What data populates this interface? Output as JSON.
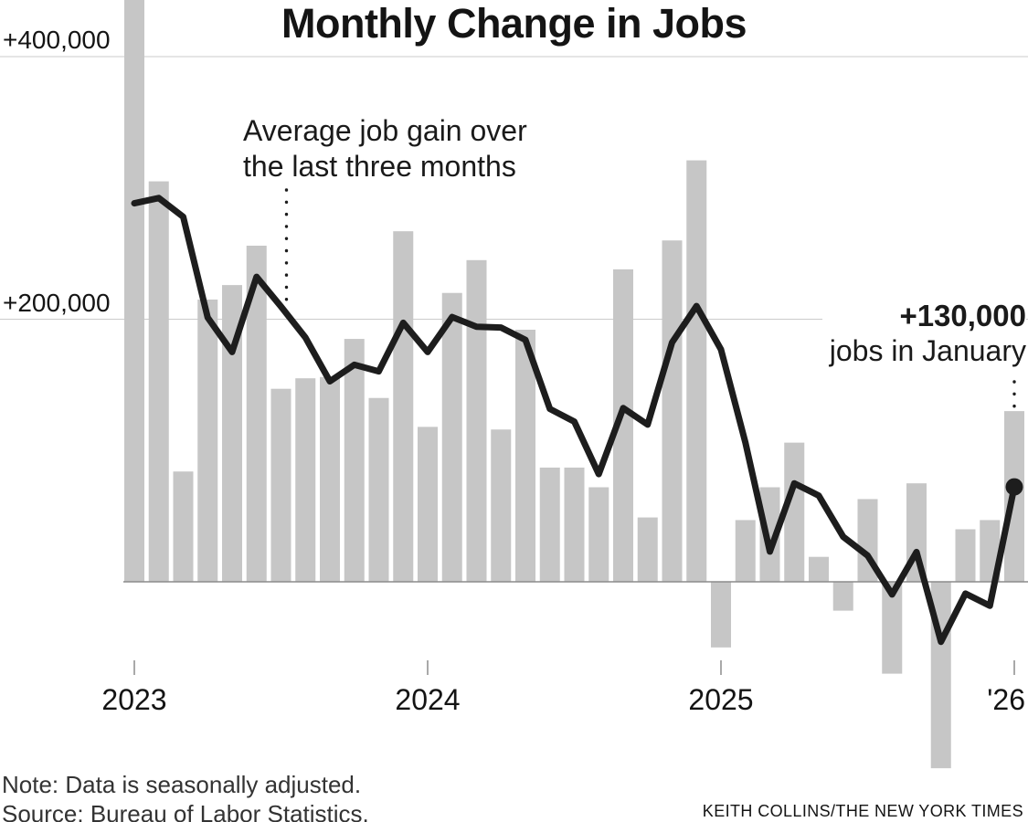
{
  "title": "Monthly Change in Jobs",
  "annotations": {
    "avg": {
      "line1": "Average job gain over",
      "line2": "the last three months"
    },
    "latest": {
      "value_label": "+130,000",
      "detail": "jobs in January"
    }
  },
  "notes": {
    "note": "Note: Data is seasonally adjusted.",
    "source": "Source: Bureau of Labor Statistics.",
    "credit": "KEITH COLLINS/THE NEW YORK TIMES"
  },
  "colors": {
    "bar": "#c6c6c6",
    "line": "#1d1d1d",
    "grid": "#cbcbcb",
    "axis": "#8c8c8c",
    "text": "#141414",
    "note_text": "#333333",
    "background": "#ffffff"
  },
  "chart_data": {
    "type": "bar",
    "title": "Monthly Change in Jobs",
    "unit": "jobs",
    "grid": "horizontal",
    "legend_position": "none",
    "baseline": 0,
    "ylim": [
      -150000,
      445000
    ],
    "x": [
      "Jan 2023",
      "Feb 2023",
      "Mar 2023",
      "Apr 2023",
      "May 2023",
      "Jun 2023",
      "Jul 2023",
      "Aug 2023",
      "Sep 2023",
      "Oct 2023",
      "Nov 2023",
      "Dec 2023",
      "Jan 2024",
      "Feb 2024",
      "Mar 2024",
      "Apr 2024",
      "May 2024",
      "Jun 2024",
      "Jul 2024",
      "Aug 2024",
      "Sep 2024",
      "Oct 2024",
      "Nov 2024",
      "Dec 2024",
      "Jan 2025",
      "Feb 2025",
      "Mar 2025",
      "Apr 2025",
      "May 2025",
      "Jun 2025",
      "Jul 2025",
      "Aug 2025",
      "Sep 2025",
      "Oct 2025",
      "Nov 2025",
      "Dec 2025",
      "Jan 2026"
    ],
    "series": [
      {
        "name": "Monthly change in jobs",
        "type": "bar",
        "color": "#c6c6c6",
        "values": [
          445000,
          305000,
          84000,
          215000,
          226000,
          256000,
          147000,
          155000,
          156000,
          185000,
          140000,
          267000,
          118000,
          220000,
          245000,
          116000,
          192000,
          87000,
          87000,
          72000,
          238000,
          49000,
          260000,
          321000,
          -50000,
          47000,
          72000,
          106000,
          19000,
          -22000,
          63000,
          -70000,
          75000,
          -142000,
          40000,
          47000,
          130000
        ]
      },
      {
        "name": "Average job gain over the last three months",
        "type": "line",
        "derived": "trailing 3-month mean",
        "color": "#1d1d1d",
        "values": [
          288300,
          292300,
          278000,
          201300,
          175000,
          232300,
          209700,
          186000,
          152700,
          165300,
          160300,
          197300,
          175000,
          201700,
          194300,
          193700,
          184300,
          131700,
          122000,
          82000,
          132300,
          119700,
          182300,
          210000,
          177000,
          106000,
          23000,
          75000,
          65700,
          34300,
          20000,
          -9700,
          22700,
          -45700,
          -9000,
          -18300,
          72300
        ]
      }
    ],
    "yticks": [
      {
        "label": "+400,000",
        "value": 400000
      },
      {
        "label": "+200,000",
        "value": 200000
      }
    ],
    "xticks": [
      {
        "label": "2023",
        "index": 0
      },
      {
        "label": "2024",
        "index": 12
      },
      {
        "label": "2025",
        "index": 24
      },
      {
        "label": "'26",
        "index": 36
      }
    ],
    "latest_point": {
      "month": "Jan 2026",
      "bar_value": 130000,
      "avg_value": 72300
    }
  }
}
